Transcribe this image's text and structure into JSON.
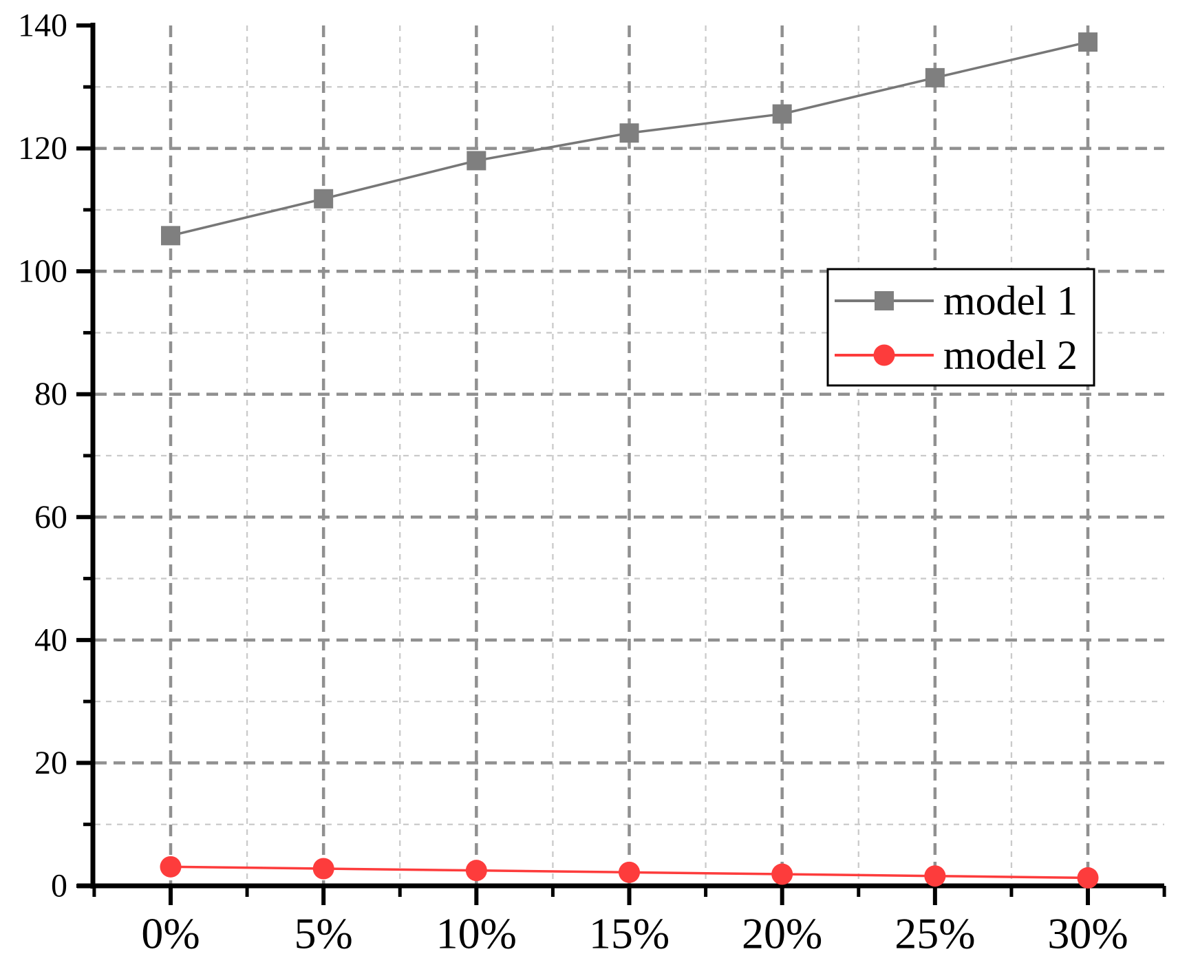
{
  "chart_data": {
    "type": "line",
    "categories": [
      "0%",
      "5%",
      "10%",
      "15%",
      "20%",
      "25%",
      "30%"
    ],
    "series": [
      {
        "name": "model 1",
        "marker": "square",
        "color": "#7f7f7f",
        "line_color": "#777777",
        "values": [
          105.8,
          111.8,
          118.0,
          122.5,
          125.6,
          131.5,
          137.3
        ]
      },
      {
        "name": "model 2",
        "marker": "circle",
        "color": "#fd3c3c",
        "line_color": "#fd3c3c",
        "values": [
          3.1,
          2.8,
          2.5,
          2.2,
          1.9,
          1.6,
          1.3
        ]
      }
    ],
    "title": "",
    "xlabel": "",
    "ylabel": "",
    "ylim": [
      0,
      140
    ],
    "y_major_ticks": [
      0,
      20,
      40,
      60,
      80,
      100,
      120,
      140
    ],
    "y_minor_ticks": [
      10,
      30,
      50,
      70,
      90,
      110,
      130
    ],
    "y_tick_labels": [
      "0",
      "20",
      "40",
      "60",
      "80",
      "100",
      "120",
      "140"
    ],
    "x_tick_labels": [
      "0%",
      "5%",
      "10%",
      "15%",
      "20%",
      "25%",
      "30%"
    ],
    "grid": {
      "major": "dashed",
      "minor": "dashed",
      "vertical_minor_at": "midpoints"
    },
    "legend": {
      "position": "inside-upper-right",
      "entries": [
        "model 1",
        "model 2"
      ]
    },
    "colors": {
      "background": "#ffffff",
      "axis": "#000000",
      "major_grid": "#909090",
      "minor_grid": "#cacaca",
      "tick_label": "#000000",
      "legend_border": "#000000"
    }
  }
}
